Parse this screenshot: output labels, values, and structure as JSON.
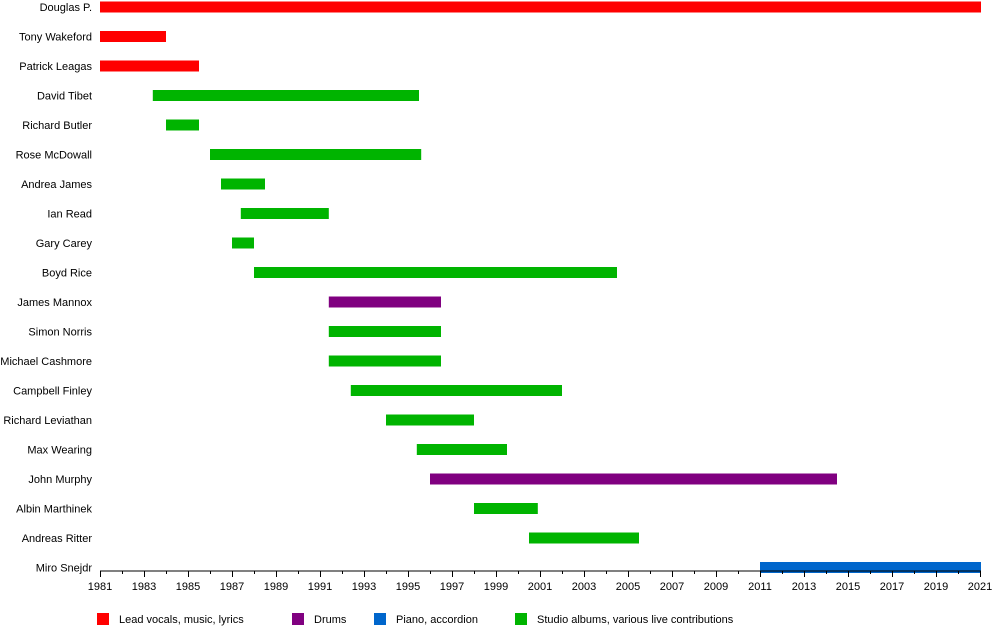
{
  "colors": {
    "lead": "#ff0000",
    "drums": "#800080",
    "piano": "#0066cc",
    "studio": "#00b400"
  },
  "chart_data": {
    "type": "timeline",
    "xlim": [
      1981,
      2021
    ],
    "x_ticks": [
      "1981",
      "1983",
      "1985",
      "1987",
      "1989",
      "1991",
      "1993",
      "1995",
      "1997",
      "1999",
      "2001",
      "2003",
      "2005",
      "2007",
      "2009",
      "2011",
      "2013",
      "2015",
      "2017",
      "2019",
      "2021"
    ],
    "legend": [
      {
        "key": "lead",
        "label": "Lead vocals, music, lyrics"
      },
      {
        "key": "drums",
        "label": "Drums"
      },
      {
        "key": "piano",
        "label": "Piano, accordion"
      },
      {
        "key": "studio",
        "label": "Studio albums, various live contributions"
      }
    ],
    "members": [
      {
        "name": "Douglas P.",
        "start": 1981.0,
        "end": 2021.1,
        "role": "lead"
      },
      {
        "name": "Tony Wakeford",
        "start": 1981.0,
        "end": 1984.0,
        "role": "lead"
      },
      {
        "name": "Patrick Leagas",
        "start": 1981.0,
        "end": 1985.5,
        "role": "lead"
      },
      {
        "name": "David Tibet",
        "start": 1983.4,
        "end": 1995.5,
        "role": "studio"
      },
      {
        "name": "Richard Butler",
        "start": 1984.0,
        "end": 1985.5,
        "role": "studio"
      },
      {
        "name": "Rose McDowall",
        "start": 1986.0,
        "end": 1995.6,
        "role": "studio"
      },
      {
        "name": "Andrea James",
        "start": 1986.5,
        "end": 1988.5,
        "role": "studio"
      },
      {
        "name": "Ian Read",
        "start": 1987.4,
        "end": 1991.4,
        "role": "studio"
      },
      {
        "name": "Gary Carey",
        "start": 1987.0,
        "end": 1988.0,
        "role": "studio"
      },
      {
        "name": "Boyd Rice",
        "start": 1988.0,
        "end": 2004.5,
        "role": "studio"
      },
      {
        "name": "James Mannox",
        "start": 1991.4,
        "end": 1996.5,
        "role": "drums"
      },
      {
        "name": "Simon Norris",
        "start": 1991.4,
        "end": 1996.5,
        "role": "studio"
      },
      {
        "name": "Michael Cashmore",
        "start": 1991.4,
        "end": 1996.5,
        "role": "studio"
      },
      {
        "name": "Campbell Finley",
        "start": 1992.4,
        "end": 2002.0,
        "role": "studio"
      },
      {
        "name": "Richard Leviathan",
        "start": 1994.0,
        "end": 1998.0,
        "role": "studio"
      },
      {
        "name": "Max Wearing",
        "start": 1995.4,
        "end": 1999.5,
        "role": "studio"
      },
      {
        "name": "John Murphy",
        "start": 1996.0,
        "end": 2014.5,
        "role": "drums"
      },
      {
        "name": "Albin Marthinek",
        "start": 1998.0,
        "end": 2000.9,
        "role": "studio"
      },
      {
        "name": "Andreas Ritter",
        "start": 2000.5,
        "end": 2005.5,
        "role": "studio"
      },
      {
        "name": "Miro Snejdr",
        "start": 2011.0,
        "end": 2021.1,
        "role": "piano"
      }
    ]
  }
}
